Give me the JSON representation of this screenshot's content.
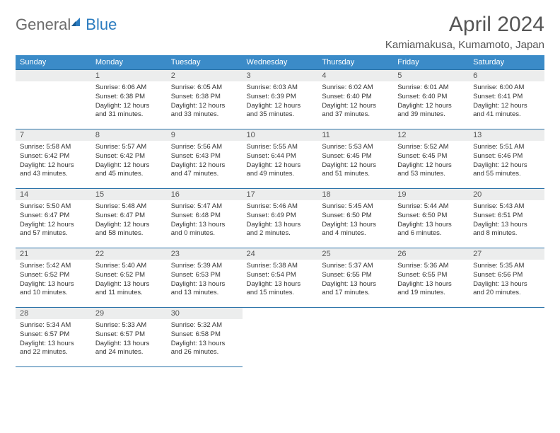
{
  "brand": {
    "part1": "General",
    "part2": "Blue"
  },
  "title": "April 2024",
  "location": "Kamiamakusa, Kumamoto, Japan",
  "colors": {
    "header_bg": "#3b8bc8",
    "header_border": "#2a72a8",
    "daynum_bg": "#eceded",
    "text_dark": "#333333",
    "text_gray": "#555555",
    "brand_gray": "#6b6b6b",
    "brand_blue": "#2a7bbf"
  },
  "weekdays": [
    "Sunday",
    "Monday",
    "Tuesday",
    "Wednesday",
    "Thursday",
    "Friday",
    "Saturday"
  ],
  "start_offset": 1,
  "days": [
    {
      "n": "1",
      "sunrise": "6:06 AM",
      "sunset": "6:38 PM",
      "dl_h": "12",
      "dl_m": "31"
    },
    {
      "n": "2",
      "sunrise": "6:05 AM",
      "sunset": "6:38 PM",
      "dl_h": "12",
      "dl_m": "33"
    },
    {
      "n": "3",
      "sunrise": "6:03 AM",
      "sunset": "6:39 PM",
      "dl_h": "12",
      "dl_m": "35"
    },
    {
      "n": "4",
      "sunrise": "6:02 AM",
      "sunset": "6:40 PM",
      "dl_h": "12",
      "dl_m": "37"
    },
    {
      "n": "5",
      "sunrise": "6:01 AM",
      "sunset": "6:40 PM",
      "dl_h": "12",
      "dl_m": "39"
    },
    {
      "n": "6",
      "sunrise": "6:00 AM",
      "sunset": "6:41 PM",
      "dl_h": "12",
      "dl_m": "41"
    },
    {
      "n": "7",
      "sunrise": "5:58 AM",
      "sunset": "6:42 PM",
      "dl_h": "12",
      "dl_m": "43"
    },
    {
      "n": "8",
      "sunrise": "5:57 AM",
      "sunset": "6:42 PM",
      "dl_h": "12",
      "dl_m": "45"
    },
    {
      "n": "9",
      "sunrise": "5:56 AM",
      "sunset": "6:43 PM",
      "dl_h": "12",
      "dl_m": "47"
    },
    {
      "n": "10",
      "sunrise": "5:55 AM",
      "sunset": "6:44 PM",
      "dl_h": "12",
      "dl_m": "49"
    },
    {
      "n": "11",
      "sunrise": "5:53 AM",
      "sunset": "6:45 PM",
      "dl_h": "12",
      "dl_m": "51"
    },
    {
      "n": "12",
      "sunrise": "5:52 AM",
      "sunset": "6:45 PM",
      "dl_h": "12",
      "dl_m": "53"
    },
    {
      "n": "13",
      "sunrise": "5:51 AM",
      "sunset": "6:46 PM",
      "dl_h": "12",
      "dl_m": "55"
    },
    {
      "n": "14",
      "sunrise": "5:50 AM",
      "sunset": "6:47 PM",
      "dl_h": "12",
      "dl_m": "57"
    },
    {
      "n": "15",
      "sunrise": "5:48 AM",
      "sunset": "6:47 PM",
      "dl_h": "12",
      "dl_m": "58"
    },
    {
      "n": "16",
      "sunrise": "5:47 AM",
      "sunset": "6:48 PM",
      "dl_h": "13",
      "dl_m": "0"
    },
    {
      "n": "17",
      "sunrise": "5:46 AM",
      "sunset": "6:49 PM",
      "dl_h": "13",
      "dl_m": "2"
    },
    {
      "n": "18",
      "sunrise": "5:45 AM",
      "sunset": "6:50 PM",
      "dl_h": "13",
      "dl_m": "4"
    },
    {
      "n": "19",
      "sunrise": "5:44 AM",
      "sunset": "6:50 PM",
      "dl_h": "13",
      "dl_m": "6"
    },
    {
      "n": "20",
      "sunrise": "5:43 AM",
      "sunset": "6:51 PM",
      "dl_h": "13",
      "dl_m": "8"
    },
    {
      "n": "21",
      "sunrise": "5:42 AM",
      "sunset": "6:52 PM",
      "dl_h": "13",
      "dl_m": "10"
    },
    {
      "n": "22",
      "sunrise": "5:40 AM",
      "sunset": "6:52 PM",
      "dl_h": "13",
      "dl_m": "11"
    },
    {
      "n": "23",
      "sunrise": "5:39 AM",
      "sunset": "6:53 PM",
      "dl_h": "13",
      "dl_m": "13"
    },
    {
      "n": "24",
      "sunrise": "5:38 AM",
      "sunset": "6:54 PM",
      "dl_h": "13",
      "dl_m": "15"
    },
    {
      "n": "25",
      "sunrise": "5:37 AM",
      "sunset": "6:55 PM",
      "dl_h": "13",
      "dl_m": "17"
    },
    {
      "n": "26",
      "sunrise": "5:36 AM",
      "sunset": "6:55 PM",
      "dl_h": "13",
      "dl_m": "19"
    },
    {
      "n": "27",
      "sunrise": "5:35 AM",
      "sunset": "6:56 PM",
      "dl_h": "13",
      "dl_m": "20"
    },
    {
      "n": "28",
      "sunrise": "5:34 AM",
      "sunset": "6:57 PM",
      "dl_h": "13",
      "dl_m": "22"
    },
    {
      "n": "29",
      "sunrise": "5:33 AM",
      "sunset": "6:57 PM",
      "dl_h": "13",
      "dl_m": "24"
    },
    {
      "n": "30",
      "sunrise": "5:32 AM",
      "sunset": "6:58 PM",
      "dl_h": "13",
      "dl_m": "26"
    }
  ]
}
